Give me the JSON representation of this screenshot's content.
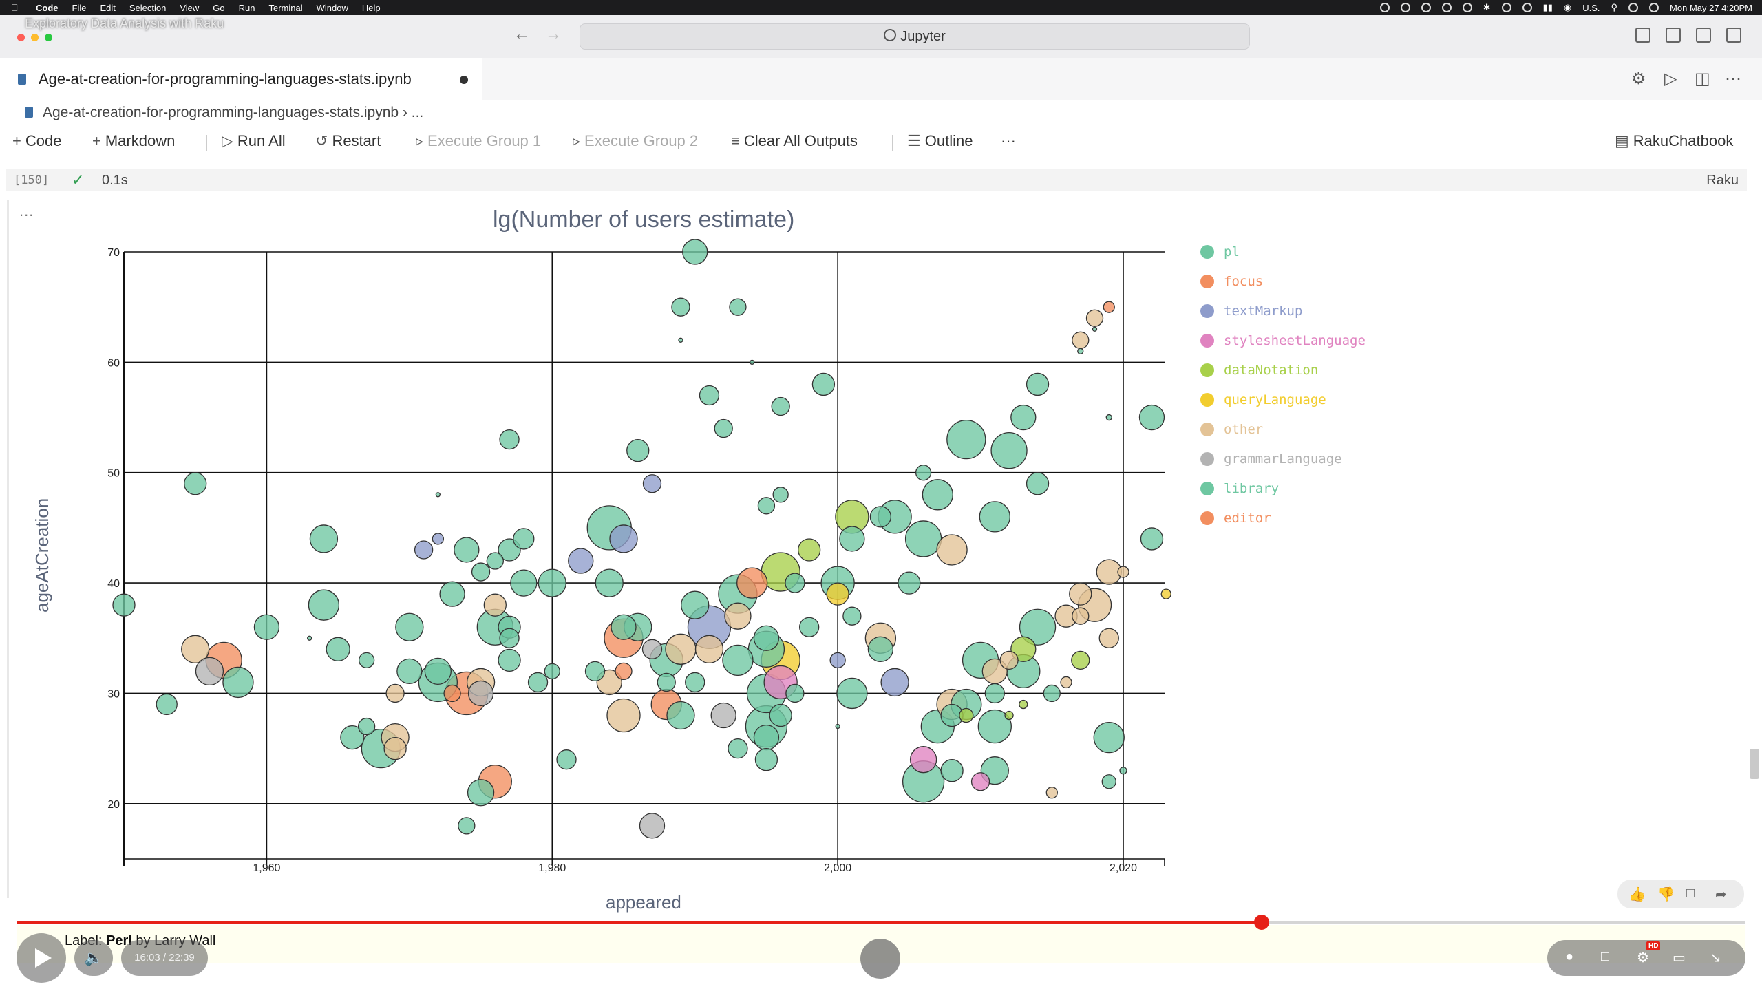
{
  "menubar": {
    "app": "Code",
    "items": [
      "File",
      "Edit",
      "Selection",
      "View",
      "Go",
      "Run",
      "Terminal",
      "Window",
      "Help"
    ],
    "input_source": "U.S.",
    "clock": "Mon May 27  4:20PM"
  },
  "video_title": "Exploratory Data Analysis with Raku",
  "search": {
    "label": "Jupyter"
  },
  "tab": {
    "filename": "Age-at-creation-for-programming-languages-stats.ipynb"
  },
  "breadcrumb": {
    "file": "Age-at-creation-for-programming-languages-stats.ipynb",
    "more": "..."
  },
  "toolbar": {
    "code": "Code",
    "markdown": "Markdown",
    "run_all": "Run All",
    "restart": "Restart",
    "execute_group_1": "Execute Group 1",
    "execute_group_2": "Execute Group 2",
    "clear_outputs": "Clear All Outputs",
    "outline": "Outline",
    "more": "···",
    "kernel_selector": "RakuChatbook"
  },
  "cell": {
    "execution_count": "[150]",
    "duration": "0.1s",
    "language": "Raku",
    "output_menu": "..."
  },
  "chart_data": {
    "type": "scatter",
    "title": "lg(Number of users estimate)",
    "xlabel": "appeared",
    "ylabel": "ageAtCreation",
    "xlim": [
      1940,
      2015
    ],
    "ylim": [
      15,
      70
    ],
    "xticks": [
      {
        "v": 1960,
        "label": "1,960"
      },
      {
        "v": 1980,
        "label": "1,980"
      },
      {
        "v": 2000,
        "label": "2,000"
      },
      {
        "v": 2020,
        "label": "2,020"
      }
    ],
    "yticks": [
      20,
      30,
      40,
      50,
      60,
      70
    ],
    "grid": true,
    "legend_position": "right",
    "categories": [
      {
        "name": "pl",
        "color": "#6ec7a1"
      },
      {
        "name": "focus",
        "color": "#f28e5f"
      },
      {
        "name": "textMarkup",
        "color": "#8e9ccb"
      },
      {
        "name": "stylesheetLanguage",
        "color": "#e083c0"
      },
      {
        "name": "dataNotation",
        "color": "#a8d04a"
      },
      {
        "name": "queryLanguage",
        "color": "#f2cd2e"
      },
      {
        "name": "other",
        "color": "#e3c396"
      },
      {
        "name": "grammarLanguage",
        "color": "#b3b3b3"
      },
      {
        "name": "library",
        "color": "#6ec7a1"
      },
      {
        "name": "editor",
        "color": "#f28e5f"
      }
    ],
    "points": [
      {
        "x": 1950,
        "y": 38,
        "s": 1.6,
        "c": "pl"
      },
      {
        "x": 1955,
        "y": 49,
        "s": 1.6,
        "c": "pl"
      },
      {
        "x": 1955,
        "y": 34,
        "s": 2.0,
        "c": "other"
      },
      {
        "x": 1957,
        "y": 33,
        "s": 2.6,
        "c": "focus"
      },
      {
        "x": 1956,
        "y": 32,
        "s": 2.0,
        "c": "grammarLanguage"
      },
      {
        "x": 1958,
        "y": 31,
        "s": 2.2,
        "c": "pl"
      },
      {
        "x": 1953,
        "y": 29,
        "s": 1.5,
        "c": "pl"
      },
      {
        "x": 1960,
        "y": 36,
        "s": 1.8,
        "c": "pl"
      },
      {
        "x": 1964,
        "y": 44,
        "s": 2.0,
        "c": "pl"
      },
      {
        "x": 1964,
        "y": 38,
        "s": 2.2,
        "c": "library"
      },
      {
        "x": 1965,
        "y": 34,
        "s": 1.7,
        "c": "pl"
      },
      {
        "x": 1963,
        "y": 35,
        "s": 0.3,
        "c": "pl"
      },
      {
        "x": 1967,
        "y": 33,
        "s": 1.1,
        "c": "pl"
      },
      {
        "x": 1966,
        "y": 26,
        "s": 1.7,
        "c": "pl"
      },
      {
        "x": 1967,
        "y": 27,
        "s": 1.2,
        "c": "pl"
      },
      {
        "x": 1968,
        "y": 25,
        "s": 2.8,
        "c": "pl"
      },
      {
        "x": 1969,
        "y": 26,
        "s": 2.0,
        "c": "other"
      },
      {
        "x": 1969,
        "y": 25,
        "s": 1.6,
        "c": "other"
      },
      {
        "x": 1970,
        "y": 36,
        "s": 2.0,
        "c": "pl"
      },
      {
        "x": 1970,
        "y": 32,
        "s": 1.8,
        "c": "pl"
      },
      {
        "x": 1969,
        "y": 30,
        "s": 1.3,
        "c": "other"
      },
      {
        "x": 1971,
        "y": 43,
        "s": 1.3,
        "c": "textMarkup"
      },
      {
        "x": 1972,
        "y": 44,
        "s": 0.8,
        "c": "textMarkup"
      },
      {
        "x": 1972,
        "y": 48,
        "s": 0.3,
        "c": "pl"
      },
      {
        "x": 1972,
        "y": 31,
        "s": 2.8,
        "c": "pl"
      },
      {
        "x": 1972,
        "y": 32,
        "s": 1.9,
        "c": "pl"
      },
      {
        "x": 1973,
        "y": 39,
        "s": 1.8,
        "c": "pl"
      },
      {
        "x": 1974,
        "y": 43,
        "s": 1.8,
        "c": "pl"
      },
      {
        "x": 1974,
        "y": 30,
        "s": 3.1,
        "c": "focus"
      },
      {
        "x": 1973,
        "y": 30,
        "s": 1.2,
        "c": "focus"
      },
      {
        "x": 1974,
        "y": 18,
        "s": 1.2,
        "c": "pl"
      },
      {
        "x": 1975,
        "y": 21,
        "s": 1.9,
        "c": "pl"
      },
      {
        "x": 1975,
        "y": 41,
        "s": 1.3,
        "c": "pl"
      },
      {
        "x": 1975,
        "y": 31,
        "s": 2.0,
        "c": "other"
      },
      {
        "x": 1975,
        "y": 30,
        "s": 1.8,
        "c": "grammarLanguage"
      },
      {
        "x": 1976,
        "y": 36,
        "s": 2.6,
        "c": "pl"
      },
      {
        "x": 1976,
        "y": 38,
        "s": 1.6,
        "c": "other"
      },
      {
        "x": 1976,
        "y": 42,
        "s": 1.2,
        "c": "pl"
      },
      {
        "x": 1976,
        "y": 22,
        "s": 2.4,
        "c": "focus"
      },
      {
        "x": 1977,
        "y": 53,
        "s": 1.4,
        "c": "pl"
      },
      {
        "x": 1977,
        "y": 43,
        "s": 1.6,
        "c": "library"
      },
      {
        "x": 1977,
        "y": 36,
        "s": 1.6,
        "c": "pl"
      },
      {
        "x": 1977,
        "y": 35,
        "s": 1.4,
        "c": "pl"
      },
      {
        "x": 1977,
        "y": 33,
        "s": 1.6,
        "c": "pl"
      },
      {
        "x": 1978,
        "y": 40,
        "s": 1.9,
        "c": "pl"
      },
      {
        "x": 1978,
        "y": 44,
        "s": 1.5,
        "c": "pl"
      },
      {
        "x": 1979,
        "y": 31,
        "s": 1.4,
        "c": "pl"
      },
      {
        "x": 1980,
        "y": 40,
        "s": 2.0,
        "c": "pl"
      },
      {
        "x": 1980,
        "y": 32,
        "s": 1.1,
        "c": "pl"
      },
      {
        "x": 1981,
        "y": 24,
        "s": 1.4,
        "c": "pl"
      },
      {
        "x": 1982,
        "y": 42,
        "s": 1.8,
        "c": "textMarkup"
      },
      {
        "x": 1983,
        "y": 32,
        "s": 1.4,
        "c": "pl"
      },
      {
        "x": 1984,
        "y": 45,
        "s": 3.2,
        "c": "pl"
      },
      {
        "x": 1984,
        "y": 40,
        "s": 2.0,
        "c": "pl"
      },
      {
        "x": 1984,
        "y": 31,
        "s": 1.8,
        "c": "other"
      },
      {
        "x": 1985,
        "y": 44,
        "s": 2.0,
        "c": "textMarkup"
      },
      {
        "x": 1985,
        "y": 35,
        "s": 2.8,
        "c": "focus"
      },
      {
        "x": 1985,
        "y": 36,
        "s": 1.8,
        "c": "pl"
      },
      {
        "x": 1985,
        "y": 32,
        "s": 1.2,
        "c": "focus"
      },
      {
        "x": 1985,
        "y": 28,
        "s": 2.4,
        "c": "other"
      },
      {
        "x": 1986,
        "y": 52,
        "s": 1.6,
        "c": "pl"
      },
      {
        "x": 1986,
        "y": 36,
        "s": 2.0,
        "c": "library"
      },
      {
        "x": 1987,
        "y": 49,
        "s": 1.3,
        "c": "textMarkup"
      },
      {
        "x": 1987,
        "y": 18,
        "s": 1.8,
        "c": "grammarLanguage"
      },
      {
        "x": 1987,
        "y": 34,
        "s": 1.4,
        "c": "grammarLanguage"
      },
      {
        "x": 1988,
        "y": 33,
        "s": 2.4,
        "c": "pl"
      },
      {
        "x": 1988,
        "y": 31,
        "s": 1.3,
        "c": "pl"
      },
      {
        "x": 1988,
        "y": 29,
        "s": 2.2,
        "c": "focus"
      },
      {
        "x": 1989,
        "y": 65,
        "s": 1.3,
        "c": "pl"
      },
      {
        "x": 1989,
        "y": 62,
        "s": 0.3,
        "c": "pl"
      },
      {
        "x": 1989,
        "y": 34,
        "s": 2.2,
        "c": "other"
      },
      {
        "x": 1989,
        "y": 28,
        "s": 2.0,
        "c": "pl"
      },
      {
        "x": 1990,
        "y": 70,
        "s": 1.8,
        "c": "pl"
      },
      {
        "x": 1990,
        "y": 38,
        "s": 2.0,
        "c": "pl"
      },
      {
        "x": 1990,
        "y": 31,
        "s": 1.4,
        "c": "pl"
      },
      {
        "x": 1991,
        "y": 57,
        "s": 1.4,
        "c": "pl"
      },
      {
        "x": 1991,
        "y": 36,
        "s": 3.1,
        "c": "textMarkup"
      },
      {
        "x": 1991,
        "y": 34,
        "s": 2.0,
        "c": "other"
      },
      {
        "x": 1992,
        "y": 54,
        "s": 1.3,
        "c": "pl"
      },
      {
        "x": 1992,
        "y": 28,
        "s": 1.8,
        "c": "grammarLanguage"
      },
      {
        "x": 1993,
        "y": 65,
        "s": 1.2,
        "c": "pl"
      },
      {
        "x": 1993,
        "y": 39,
        "s": 2.8,
        "c": "pl"
      },
      {
        "x": 1993,
        "y": 37,
        "s": 1.9,
        "c": "other"
      },
      {
        "x": 1993,
        "y": 33,
        "s": 2.2,
        "c": "pl"
      },
      {
        "x": 1993,
        "y": 25,
        "s": 1.4,
        "c": "pl"
      },
      {
        "x": 1994,
        "y": 60,
        "s": 0.3,
        "c": "pl"
      },
      {
        "x": 1994,
        "y": 40,
        "s": 2.2,
        "c": "focus"
      },
      {
        "x": 1995,
        "y": 47,
        "s": 1.2,
        "c": "pl"
      },
      {
        "x": 1995,
        "y": 34,
        "s": 2.6,
        "c": "pl"
      },
      {
        "x": 1995,
        "y": 35,
        "s": 1.8,
        "c": "pl"
      },
      {
        "x": 1995,
        "y": 30,
        "s": 2.8,
        "c": "pl"
      },
      {
        "x": 1995,
        "y": 27,
        "s": 3.0,
        "c": "pl"
      },
      {
        "x": 1995,
        "y": 26,
        "s": 1.8,
        "c": "pl"
      },
      {
        "x": 1995,
        "y": 24,
        "s": 1.6,
        "c": "pl"
      },
      {
        "x": 1996,
        "y": 56,
        "s": 1.3,
        "c": "pl"
      },
      {
        "x": 1996,
        "y": 48,
        "s": 1.1,
        "c": "pl"
      },
      {
        "x": 1996,
        "y": 41,
        "s": 2.8,
        "c": "dataNotation"
      },
      {
        "x": 1996,
        "y": 33,
        "s": 2.8,
        "c": "queryLanguage"
      },
      {
        "x": 1996,
        "y": 31,
        "s": 2.4,
        "c": "stylesheetLanguage"
      },
      {
        "x": 1996,
        "y": 28,
        "s": 1.6,
        "c": "pl"
      },
      {
        "x": 1997,
        "y": 40,
        "s": 1.4,
        "c": "pl"
      },
      {
        "x": 1997,
        "y": 30,
        "s": 1.3,
        "c": "pl"
      },
      {
        "x": 1998,
        "y": 43,
        "s": 1.6,
        "c": "dataNotation"
      },
      {
        "x": 1998,
        "y": 36,
        "s": 1.4,
        "c": "pl"
      },
      {
        "x": 1999,
        "y": 58,
        "s": 1.6,
        "c": "pl"
      },
      {
        "x": 2000,
        "y": 40,
        "s": 2.4,
        "c": "pl"
      },
      {
        "x": 2000,
        "y": 39,
        "s": 1.6,
        "c": "queryLanguage"
      },
      {
        "x": 2000,
        "y": 33,
        "s": 1.1,
        "c": "textMarkup"
      },
      {
        "x": 2000,
        "y": 27,
        "s": 0.3,
        "c": "pl"
      },
      {
        "x": 2001,
        "y": 46,
        "s": 2.4,
        "c": "dataNotation"
      },
      {
        "x": 2001,
        "y": 44,
        "s": 1.8,
        "c": "pl"
      },
      {
        "x": 2001,
        "y": 37,
        "s": 1.3,
        "c": "pl"
      },
      {
        "x": 2001,
        "y": 30,
        "s": 2.2,
        "c": "pl"
      },
      {
        "x": 2003,
        "y": 35,
        "s": 2.2,
        "c": "other"
      },
      {
        "x": 2003,
        "y": 34,
        "s": 1.8,
        "c": "pl"
      },
      {
        "x": 2003,
        "y": 46,
        "s": 1.5,
        "c": "pl"
      },
      {
        "x": 2004,
        "y": 46,
        "s": 2.4,
        "c": "pl"
      },
      {
        "x": 2004,
        "y": 31,
        "s": 2.0,
        "c": "textMarkup"
      },
      {
        "x": 2005,
        "y": 40,
        "s": 1.6,
        "c": "pl"
      },
      {
        "x": 2006,
        "y": 50,
        "s": 1.1,
        "c": "pl"
      },
      {
        "x": 2006,
        "y": 44,
        "s": 2.6,
        "c": "pl"
      },
      {
        "x": 2006,
        "y": 24,
        "s": 1.9,
        "c": "stylesheetLanguage"
      },
      {
        "x": 2006,
        "y": 22,
        "s": 3.0,
        "c": "pl"
      },
      {
        "x": 2007,
        "y": 48,
        "s": 2.2,
        "c": "pl"
      },
      {
        "x": 2007,
        "y": 27,
        "s": 2.4,
        "c": "pl"
      },
      {
        "x": 2008,
        "y": 43,
        "s": 2.2,
        "c": "other"
      },
      {
        "x": 2008,
        "y": 29,
        "s": 2.2,
        "c": "other"
      },
      {
        "x": 2008,
        "y": 28,
        "s": 1.6,
        "c": "pl"
      },
      {
        "x": 2008,
        "y": 23,
        "s": 1.6,
        "c": "pl"
      },
      {
        "x": 2009,
        "y": 53,
        "s": 2.8,
        "c": "pl"
      },
      {
        "x": 2009,
        "y": 29,
        "s": 2.2,
        "c": "pl"
      },
      {
        "x": 2009,
        "y": 28,
        "s": 1.0,
        "c": "dataNotation"
      },
      {
        "x": 2010,
        "y": 33,
        "s": 2.6,
        "c": "pl"
      },
      {
        "x": 2010,
        "y": 22,
        "s": 1.3,
        "c": "stylesheetLanguage"
      },
      {
        "x": 2011,
        "y": 46,
        "s": 2.2,
        "c": "pl"
      },
      {
        "x": 2011,
        "y": 30,
        "s": 1.4,
        "c": "pl"
      },
      {
        "x": 2011,
        "y": 27,
        "s": 2.4,
        "c": "pl"
      },
      {
        "x": 2011,
        "y": 23,
        "s": 2.0,
        "c": "library"
      },
      {
        "x": 2011,
        "y": 32,
        "s": 1.8,
        "c": "other"
      },
      {
        "x": 2012,
        "y": 52,
        "s": 2.6,
        "c": "pl"
      },
      {
        "x": 2012,
        "y": 33,
        "s": 1.3,
        "c": "other"
      },
      {
        "x": 2012,
        "y": 28,
        "s": 0.6,
        "c": "dataNotation"
      },
      {
        "x": 2013,
        "y": 55,
        "s": 1.8,
        "c": "pl"
      },
      {
        "x": 2013,
        "y": 34,
        "s": 1.8,
        "c": "dataNotation"
      },
      {
        "x": 2013,
        "y": 32,
        "s": 2.4,
        "c": "pl"
      },
      {
        "x": 2013,
        "y": 29,
        "s": 0.6,
        "c": "dataNotation"
      },
      {
        "x": 2014,
        "y": 58,
        "s": 1.6,
        "c": "pl"
      },
      {
        "x": 2014,
        "y": 49,
        "s": 1.6,
        "c": "pl"
      },
      {
        "x": 2014,
        "y": 36,
        "s": 2.6,
        "c": "pl"
      },
      {
        "x": 2015,
        "y": 30,
        "s": 1.2,
        "c": "pl"
      },
      {
        "x": 2015,
        "y": 21,
        "s": 0.8,
        "c": "other"
      },
      {
        "x": 2016,
        "y": 37,
        "s": 1.6,
        "c": "other"
      },
      {
        "x": 2016,
        "y": 31,
        "s": 0.8,
        "c": "other"
      },
      {
        "x": 2017,
        "y": 62,
        "s": 1.2,
        "c": "other"
      },
      {
        "x": 2017,
        "y": 61,
        "s": 0.4,
        "c": "pl"
      },
      {
        "x": 2017,
        "y": 39,
        "s": 1.6,
        "c": "other"
      },
      {
        "x": 2017,
        "y": 37,
        "s": 1.2,
        "c": "other"
      },
      {
        "x": 2017,
        "y": 33,
        "s": 1.3,
        "c": "dataNotation"
      },
      {
        "x": 2018,
        "y": 64,
        "s": 1.2,
        "c": "other"
      },
      {
        "x": 2018,
        "y": 63,
        "s": 0.3,
        "c": "pl"
      },
      {
        "x": 2018,
        "y": 38,
        "s": 2.4,
        "c": "other"
      },
      {
        "x": 2019,
        "y": 65,
        "s": 0.8,
        "c": "focus"
      },
      {
        "x": 2019,
        "y": 55,
        "s": 0.4,
        "c": "pl"
      },
      {
        "x": 2019,
        "y": 41,
        "s": 1.8,
        "c": "other"
      },
      {
        "x": 2019,
        "y": 35,
        "s": 1.4,
        "c": "other"
      },
      {
        "x": 2019,
        "y": 26,
        "s": 2.2,
        "c": "pl"
      },
      {
        "x": 2019,
        "y": 22,
        "s": 1.0,
        "c": "pl"
      },
      {
        "x": 2020,
        "y": 41,
        "s": 0.8,
        "c": "other"
      },
      {
        "x": 2020,
        "y": 23,
        "s": 0.5,
        "c": "library"
      },
      {
        "x": 2022,
        "y": 55,
        "s": 1.8,
        "c": "pl"
      },
      {
        "x": 2022,
        "y": 44,
        "s": 1.6,
        "c": "pl"
      },
      {
        "x": 2023,
        "y": 39,
        "s": 0.7,
        "c": "queryLanguage"
      }
    ]
  },
  "player": {
    "caption_label": "Label: ",
    "caption_name": "Perl",
    "caption_rest": " by Larry Wall",
    "time": "16:03 / 22:39",
    "progress": 0.72,
    "hd_badge": "HD"
  }
}
